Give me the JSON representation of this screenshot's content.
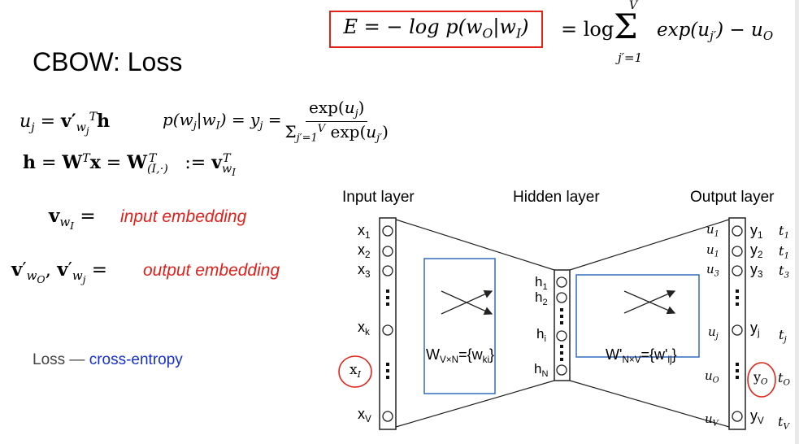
{
  "slide": {
    "title": "CBOW: Loss",
    "loss_formula": {
      "boxed": "E = − log p(wO|wI)",
      "rhs_prefix": "= log",
      "sum_top": "V",
      "sum_bottom": "j′=1",
      "rhs_term": "exp(uj′) − uO"
    },
    "equations": {
      "u_j": "uj = v′wjT h",
      "p_softmax": "p(wj|wI) = yj =",
      "frac_num": "exp(uj)",
      "frac_den": "Σ j′=1 V exp(uj′)",
      "h_def": "h = WT x = WT(I,·) := vTwI"
    },
    "input_embedding": {
      "symbol": "vwI =",
      "label": "input embedding"
    },
    "output_embedding": {
      "symbol": "v′wO , v′wj =",
      "label": "output embedding"
    },
    "loss_note": {
      "prefix": "Loss — ",
      "highlight": "cross-entropy"
    },
    "colors": {
      "emphasis_red": "#e0201a",
      "link_blue": "#1530d0",
      "box_blue": "#3f74c4"
    }
  },
  "diagram": {
    "layers": {
      "input": "Input layer",
      "hidden": "Hidden layer",
      "output": "Output layer"
    },
    "input_labels": [
      "x1",
      "x2",
      "x3",
      "xk",
      "xV"
    ],
    "circled_input": "xI",
    "hidden_labels": [
      "h1",
      "h2",
      "hi",
      "hN"
    ],
    "output_y": [
      "y1",
      "y2",
      "y3",
      "yj",
      "yV"
    ],
    "circled_output": "yO",
    "output_u": [
      "u1",
      "u1",
      "u3",
      "uj",
      "uO",
      "uV"
    ],
    "output_t": [
      "t1",
      "t1",
      "t3",
      "tj",
      "tO",
      "tV"
    ],
    "weights_in": "WV×N={wki}",
    "weights_out": "W′N×V={w′ij}"
  }
}
